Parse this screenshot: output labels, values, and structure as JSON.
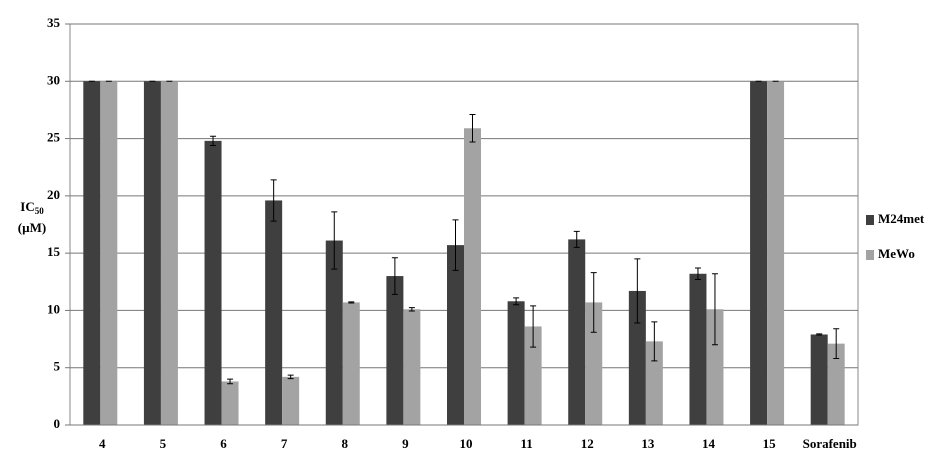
{
  "chart_data": {
    "type": "bar",
    "y_label": {
      "main": "IC",
      "sub": "50",
      "unit": "(µM)"
    },
    "categories": [
      "4",
      "5",
      "6",
      "7",
      "8",
      "9",
      "10",
      "11",
      "12",
      "13",
      "14",
      "15",
      "Sorafenib"
    ],
    "series": [
      {
        "name": "M24met",
        "color": "#3f3f3f",
        "values": [
          30,
          30,
          24.8,
          19.6,
          16.1,
          13.0,
          15.7,
          10.8,
          16.2,
          11.7,
          13.2,
          30,
          7.9
        ],
        "errors": [
          0,
          0,
          0.4,
          1.8,
          2.5,
          1.6,
          2.2,
          0.3,
          0.7,
          2.8,
          0.5,
          0,
          0.05
        ]
      },
      {
        "name": "MeWo",
        "color": "#a3a3a3",
        "values": [
          30,
          30,
          3.8,
          4.2,
          10.7,
          10.1,
          25.9,
          8.6,
          10.7,
          7.3,
          10.1,
          30,
          7.1
        ],
        "errors": [
          0,
          0,
          0.2,
          0.15,
          0.05,
          0.15,
          1.2,
          1.8,
          2.6,
          1.7,
          3.1,
          0,
          1.3
        ]
      }
    ],
    "ylim": [
      0,
      35
    ],
    "yticks": [
      0,
      5,
      10,
      15,
      20,
      25,
      30,
      35
    ],
    "grid": true
  }
}
